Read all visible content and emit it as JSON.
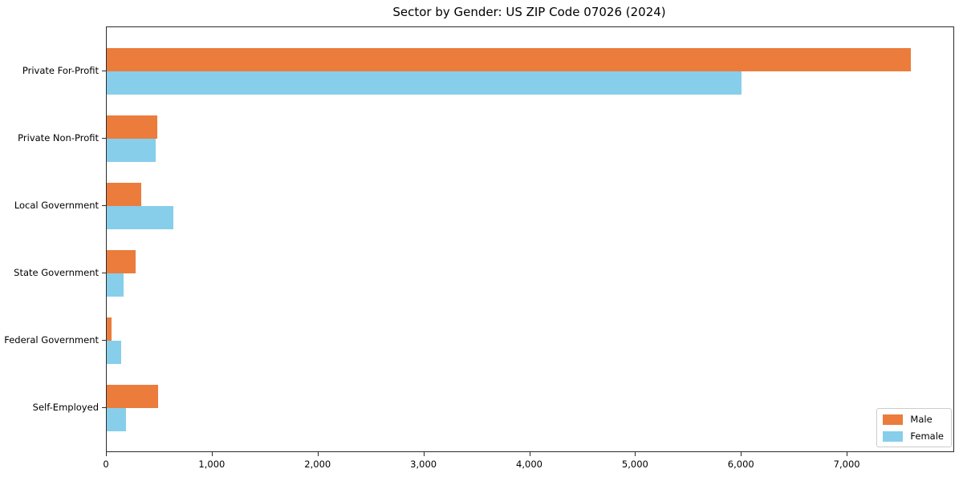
{
  "chart_data": {
    "type": "bar",
    "orientation": "horizontal",
    "title": "Sector by Gender: US ZIP Code 07026 (2024)",
    "categories": [
      "Private For-Profit",
      "Private Non-Profit",
      "Local Government",
      "State Government",
      "Federal Government",
      "Self-Employed"
    ],
    "series": [
      {
        "name": "Male",
        "color": "#eb7c3c",
        "values": [
          7600,
          480,
          325,
          275,
          45,
          485
        ]
      },
      {
        "name": "Female",
        "color": "#87ceeb",
        "values": [
          6000,
          465,
          630,
          160,
          135,
          180
        ]
      }
    ],
    "xlim": [
      0,
      8000
    ],
    "x_ticks": [
      0,
      1000,
      2000,
      3000,
      4000,
      5000,
      6000,
      7000
    ],
    "x_tick_labels": [
      "0",
      "1,000",
      "2,000",
      "3,000",
      "4,000",
      "5,000",
      "6,000",
      "7,000"
    ],
    "xlabel": "",
    "ylabel": "",
    "grid": false,
    "legend_position": "lower right",
    "background_color": "#ffffff",
    "axis_color": "#2b2b2b"
  }
}
